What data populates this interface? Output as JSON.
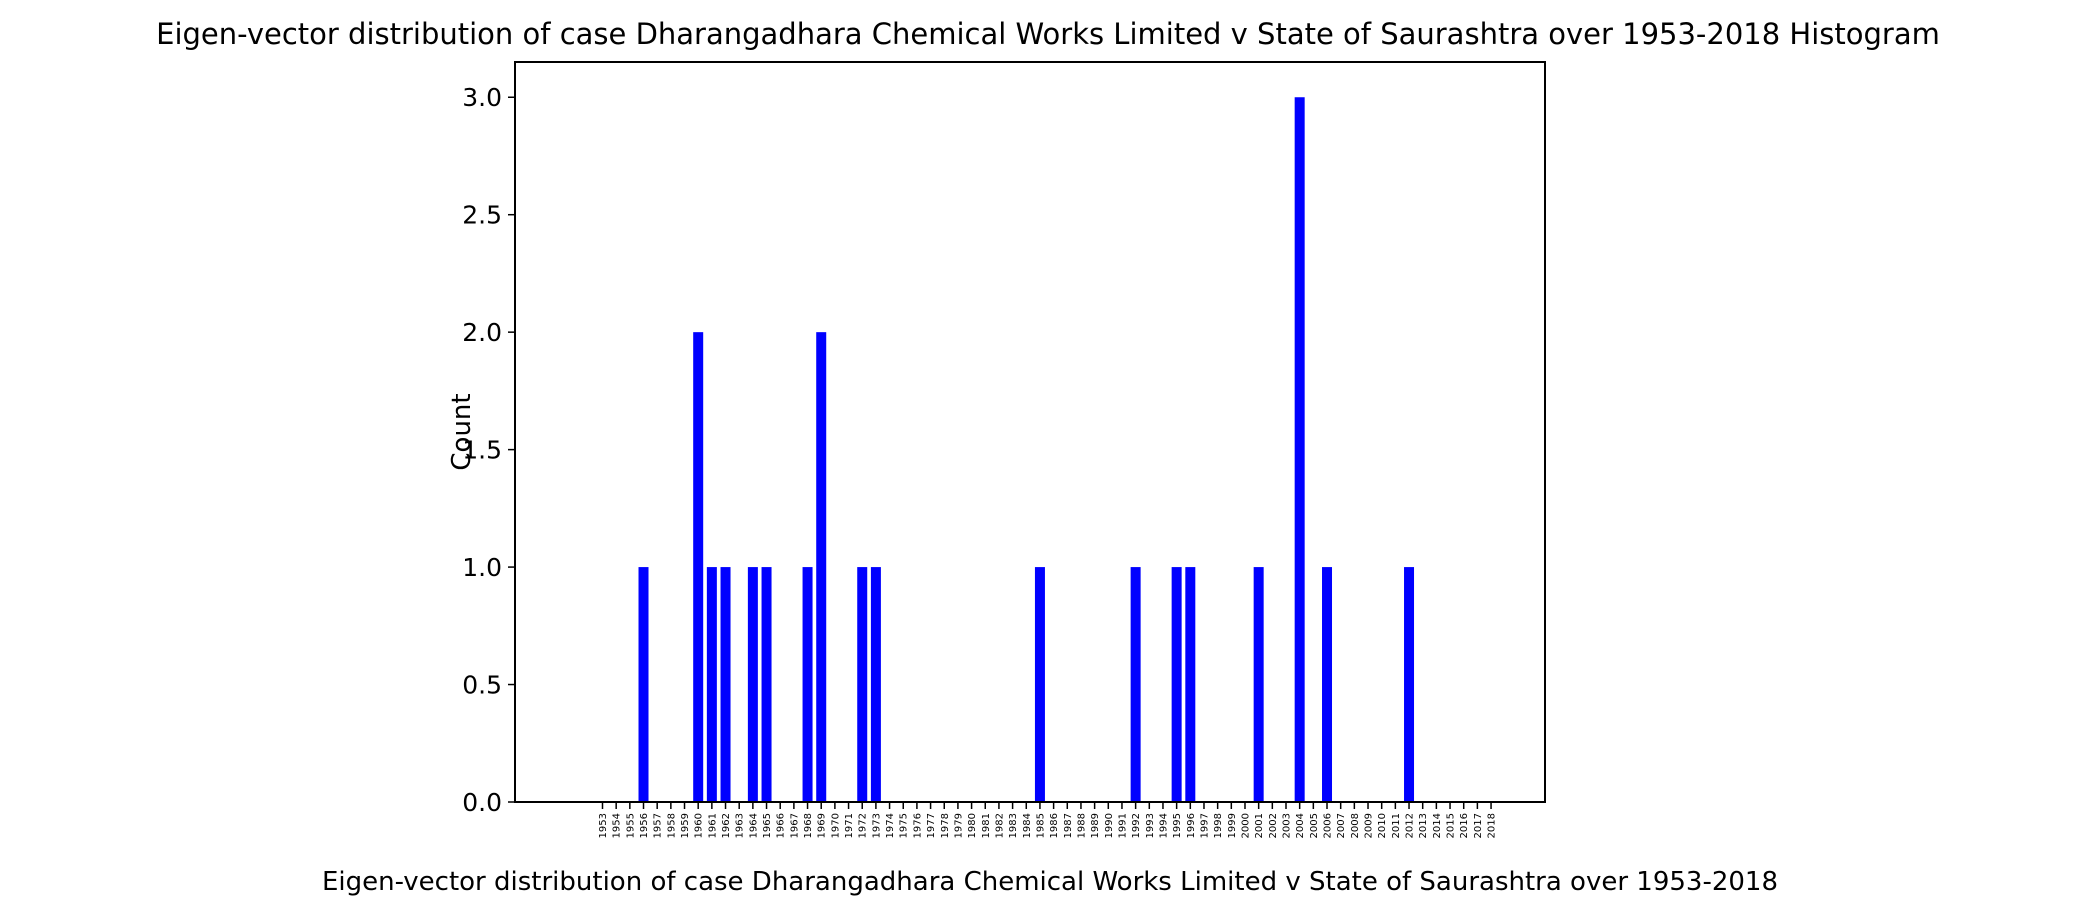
{
  "chart_data": {
    "type": "bar",
    "title": "Eigen-vector distribution of case Dharangadhara Chemical Works Limited v State of Saurashtra over 1953-2018 Histogram",
    "xlabel": "Eigen-vector distribution of case Dharangadhara Chemical Works Limited v State of Saurashtra over 1953-2018",
    "ylabel": "Count",
    "ylim": [
      0,
      3.15
    ],
    "yticks": [
      "0.0",
      "0.5",
      "1.0",
      "1.5",
      "2.0",
      "2.5",
      "3.0"
    ],
    "grid": false,
    "bar_color": "#0000ff",
    "categories": [
      "1953",
      "1954",
      "1955",
      "1956",
      "1957",
      "1958",
      "1959",
      "1960",
      "1961",
      "1962",
      "1963",
      "1964",
      "1965",
      "1966",
      "1967",
      "1968",
      "1969",
      "1970",
      "1971",
      "1972",
      "1973",
      "1974",
      "1975",
      "1976",
      "1977",
      "1978",
      "1979",
      "1980",
      "1981",
      "1982",
      "1983",
      "1984",
      "1985",
      "1986",
      "1987",
      "1988",
      "1989",
      "1990",
      "1991",
      "1992",
      "1993",
      "1994",
      "1995",
      "1996",
      "1997",
      "1998",
      "1999",
      "2000",
      "2001",
      "2002",
      "2003",
      "2004",
      "2005",
      "2006",
      "2007",
      "2008",
      "2009",
      "2010",
      "2011",
      "2012",
      "2013",
      "2014",
      "2015",
      "2016",
      "2017",
      "2018"
    ],
    "bars": [
      {
        "x": 1956,
        "value": 1
      },
      {
        "x": 1960,
        "value": 2
      },
      {
        "x": 1961,
        "value": 1
      },
      {
        "x": 1962,
        "value": 1
      },
      {
        "x": 1964,
        "value": 1
      },
      {
        "x": 1965,
        "value": 1
      },
      {
        "x": 1968,
        "value": 1
      },
      {
        "x": 1969,
        "value": 2
      },
      {
        "x": 1972,
        "value": 1
      },
      {
        "x": 1973,
        "value": 1
      },
      {
        "x": 1985,
        "value": 1
      },
      {
        "x": 1992,
        "value": 1
      },
      {
        "x": 1995,
        "value": 1
      },
      {
        "x": 1996,
        "value": 1
      },
      {
        "x": 2001,
        "value": 1
      },
      {
        "x": 2004,
        "value": 3
      },
      {
        "x": 2006,
        "value": 1
      },
      {
        "x": 2012,
        "value": 1
      }
    ]
  }
}
